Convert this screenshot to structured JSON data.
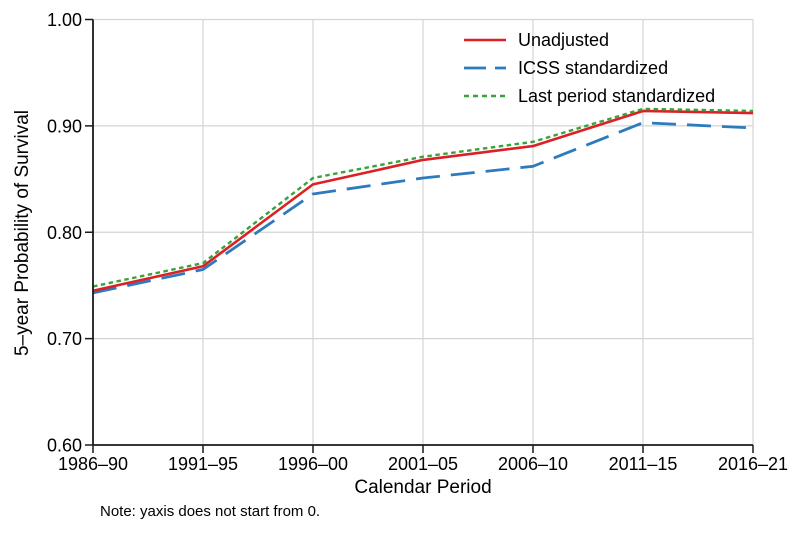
{
  "note": "Note: yaxis does not start from 0.",
  "chart_data": {
    "type": "line",
    "title": "",
    "xlabel": "Calendar Period",
    "ylabel": "5–year Probability of Survival",
    "categories": [
      "1986–90",
      "1991–95",
      "1996–00",
      "2001–05",
      "2006–10",
      "2011–15",
      "2016–21"
    ],
    "series": [
      {
        "name": "Unadjusted",
        "color": "#dd1f26",
        "dash": "solid",
        "values": [
          0.745,
          0.768,
          0.845,
          0.868,
          0.881,
          0.914,
          0.912
        ]
      },
      {
        "name": "ICSS standardized",
        "color": "#2d7abd",
        "dash": "long-dash",
        "values": [
          0.743,
          0.765,
          0.836,
          0.851,
          0.862,
          0.903,
          0.898
        ]
      },
      {
        "name": "Last period standardized",
        "color": "#3aa23a",
        "dash": "short-dash",
        "values": [
          0.749,
          0.771,
          0.851,
          0.871,
          0.885,
          0.916,
          0.914
        ]
      }
    ],
    "ylim": [
      0.6,
      1.0
    ],
    "yticks": [
      {
        "value": 0.6,
        "label": "0.60"
      },
      {
        "value": 0.7,
        "label": "0.70"
      },
      {
        "value": 0.8,
        "label": "0.80"
      },
      {
        "value": 0.9,
        "label": "0.90"
      },
      {
        "value": 1.0,
        "label": "1.00"
      }
    ],
    "grid": true,
    "legend_position": "top-right",
    "colors": {
      "gridline": "#d4d4d4",
      "axis": "#1a1a1a",
      "text": "#000000",
      "background": "#ffffff"
    }
  }
}
